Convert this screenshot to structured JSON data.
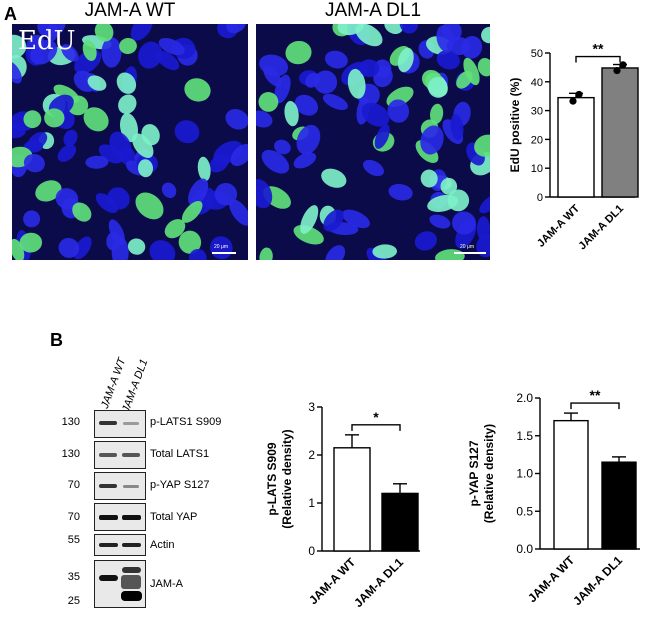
{
  "panel_a": {
    "letter": "A",
    "micrograph_wt": {
      "title": "JAM-A WT",
      "stain_label": "EdU",
      "scalebar": "20 μm"
    },
    "micrograph_dl1": {
      "title": "JAM-A DL1",
      "scalebar": "20 μm"
    }
  },
  "panel_b": {
    "letter": "B",
    "lane_labels": [
      "JAM-A WT",
      "JAM-A DL1"
    ],
    "blot_rows": [
      {
        "mw": "130",
        "protein": "p-LATS1  S909"
      },
      {
        "mw": "130",
        "protein": "Total LATS1"
      },
      {
        "mw": "70",
        "protein": "p-YAP  S127"
      },
      {
        "mw": "70",
        "protein": "Total YAP"
      },
      {
        "mw": "55",
        "protein": "Actin"
      },
      {
        "mw": "35",
        "protein": "JAM-A"
      },
      {
        "mw": "25",
        "protein": ""
      }
    ]
  },
  "colors": {
    "wt_bar": "#ffffff",
    "dl1_bar_gray": "#808080",
    "dl1_bar_black": "#000000",
    "nucleus_blue": "#1a1ad0",
    "edu_green": "#7ef0c8"
  },
  "chart_data": [
    {
      "id": "edu",
      "type": "bar",
      "categories": [
        "JAM-A WT",
        "JAM-A DL1"
      ],
      "values": [
        34.5,
        44.8
      ],
      "errors": [
        1.5,
        1.2
      ],
      "points": [
        [
          33.3,
          35.6
        ],
        [
          43.9,
          45.9
        ]
      ],
      "colors": [
        "#ffffff",
        "#808080"
      ],
      "ylabel": "EdU positive (%)",
      "ylim": [
        0,
        50
      ],
      "yticks": [
        "0",
        "10",
        "20",
        "30",
        "40",
        "50"
      ],
      "significance": "**"
    },
    {
      "id": "plats",
      "type": "bar",
      "categories": [
        "JAM-A WT",
        "JAM-A DL1"
      ],
      "values": [
        2.15,
        1.2
      ],
      "errors": [
        0.27,
        0.2
      ],
      "colors": [
        "#ffffff",
        "#000000"
      ],
      "ylabel": "p-LATS S909",
      "ylabel2": "(Relative density)",
      "ylim": [
        0,
        3
      ],
      "yticks": [
        "0",
        "1",
        "2",
        "3"
      ],
      "significance": "*"
    },
    {
      "id": "pyap",
      "type": "bar",
      "categories": [
        "JAM-A WT",
        "JAM-A DL1"
      ],
      "values": [
        1.7,
        1.15
      ],
      "errors": [
        0.1,
        0.07
      ],
      "colors": [
        "#ffffff",
        "#000000"
      ],
      "ylabel": "p-YAP S127",
      "ylabel2": "(Relative density)",
      "ylim": [
        0,
        2
      ],
      "yticks": [
        "0.0",
        "0.5",
        "1.0",
        "1.5",
        "2.0"
      ],
      "significance": "**"
    }
  ]
}
